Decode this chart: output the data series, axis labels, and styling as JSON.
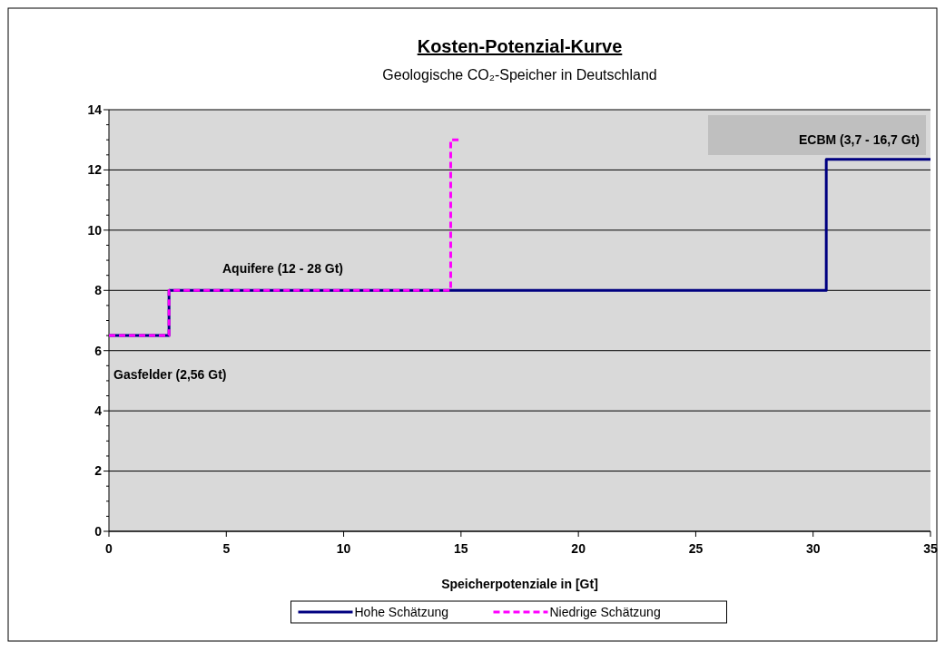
{
  "chart_data": {
    "type": "step",
    "title": "Kosten-Potenzial-Kurve",
    "subtitle": "Geologische CO₂-Speicher in Deutschland",
    "xlabel": "Speicherpotenziale in [Gt]",
    "xlim": [
      0,
      35
    ],
    "xticks": [
      0,
      5,
      10,
      15,
      20,
      25,
      30,
      35
    ],
    "ylim": [
      0,
      14
    ],
    "yticks": [
      0,
      2,
      4,
      6,
      8,
      10,
      12,
      14
    ],
    "grid": "y",
    "legend": "bottom",
    "marker": "none",
    "series": [
      {
        "name": "Hohe Schätzung",
        "color": "#000080",
        "line_style": "solid",
        "x": [
          0,
          2.56,
          30.56,
          35
        ],
        "values": [
          6.5,
          8,
          12.35,
          12.35
        ]
      },
      {
        "name": "Niedrige Schätzung",
        "color": "#ff00ff",
        "line_style": "dashed",
        "x": [
          0,
          2.56,
          14.56,
          14.9
        ],
        "values": [
          6.5,
          8,
          13,
          13
        ]
      }
    ],
    "annotations": [
      "Gasfelder (2,56 Gt)",
      "Aquifere (12 - 28 Gt)",
      "ECBM (3,7 - 16,7 Gt)"
    ]
  }
}
